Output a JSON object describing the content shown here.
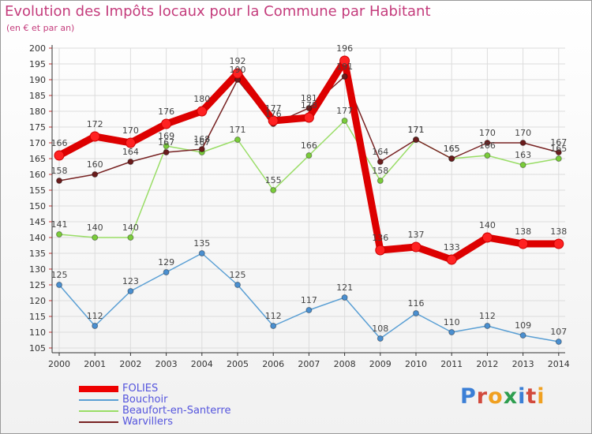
{
  "title": "Evolution des Impôts locaux pour la Commune par Habitant",
  "subtitle": "(en € et par an)",
  "logo": "Proxiti",
  "colors": {
    "title": "#c43c7c",
    "legend_text": "#5555dd",
    "axis": "#333333",
    "grid": "#dcdcdc"
  },
  "chart_data": {
    "type": "line",
    "title": "Evolution des Impôts locaux pour la Commune par Habitant",
    "subtitle": "(en € et par an)",
    "xlabel": "",
    "ylabel": "",
    "categories": [
      "2000",
      "2001",
      "2002",
      "2003",
      "2004",
      "2005",
      "2006",
      "2007",
      "2008",
      "2009",
      "2010",
      "2011",
      "2012",
      "2013",
      "2014"
    ],
    "ylim": [
      105,
      200
    ],
    "yticks": [
      105,
      110,
      115,
      120,
      125,
      130,
      135,
      140,
      145,
      150,
      155,
      160,
      165,
      170,
      175,
      180,
      185,
      190,
      195,
      200
    ],
    "grid": true,
    "legend_position": "bottom-left",
    "series": [
      {
        "name": "FOLIES",
        "color": "#ee0000",
        "line_color": "#dd0000",
        "marker_color": "#ff2222",
        "line_width": 9,
        "marker_radius": 6,
        "values": [
          166,
          172,
          170,
          176,
          180,
          192,
          177,
          178,
          196,
          136,
          137,
          133,
          140,
          138,
          138
        ]
      },
      {
        "name": "Bouchoir",
        "color": "#5a9fd4",
        "line_color": "#5a9fd4",
        "marker_color": "#4a8fd0",
        "line_width": 1.5,
        "marker_radius": 3.5,
        "values": [
          125,
          112,
          123,
          129,
          135,
          125,
          112,
          117,
          121,
          108,
          116,
          110,
          112,
          109,
          107
        ]
      },
      {
        "name": "Beaufort-en-Santerre",
        "color": "#99dd66",
        "line_color": "#99dd66",
        "marker_color": "#7acc3a",
        "line_width": 1.5,
        "marker_radius": 3.5,
        "values": [
          141,
          140,
          140,
          169,
          167,
          171,
          155,
          166,
          177,
          158,
          171,
          165,
          166,
          163,
          165
        ]
      },
      {
        "name": "Warvillers",
        "color": "#772222",
        "line_color": "#772222",
        "marker_color": "#6a1c1c",
        "line_width": 1.5,
        "marker_radius": 3.5,
        "values": [
          158,
          160,
          164,
          167,
          168,
          190,
          176,
          181,
          191,
          164,
          171,
          165,
          170,
          170,
          167
        ]
      }
    ]
  }
}
